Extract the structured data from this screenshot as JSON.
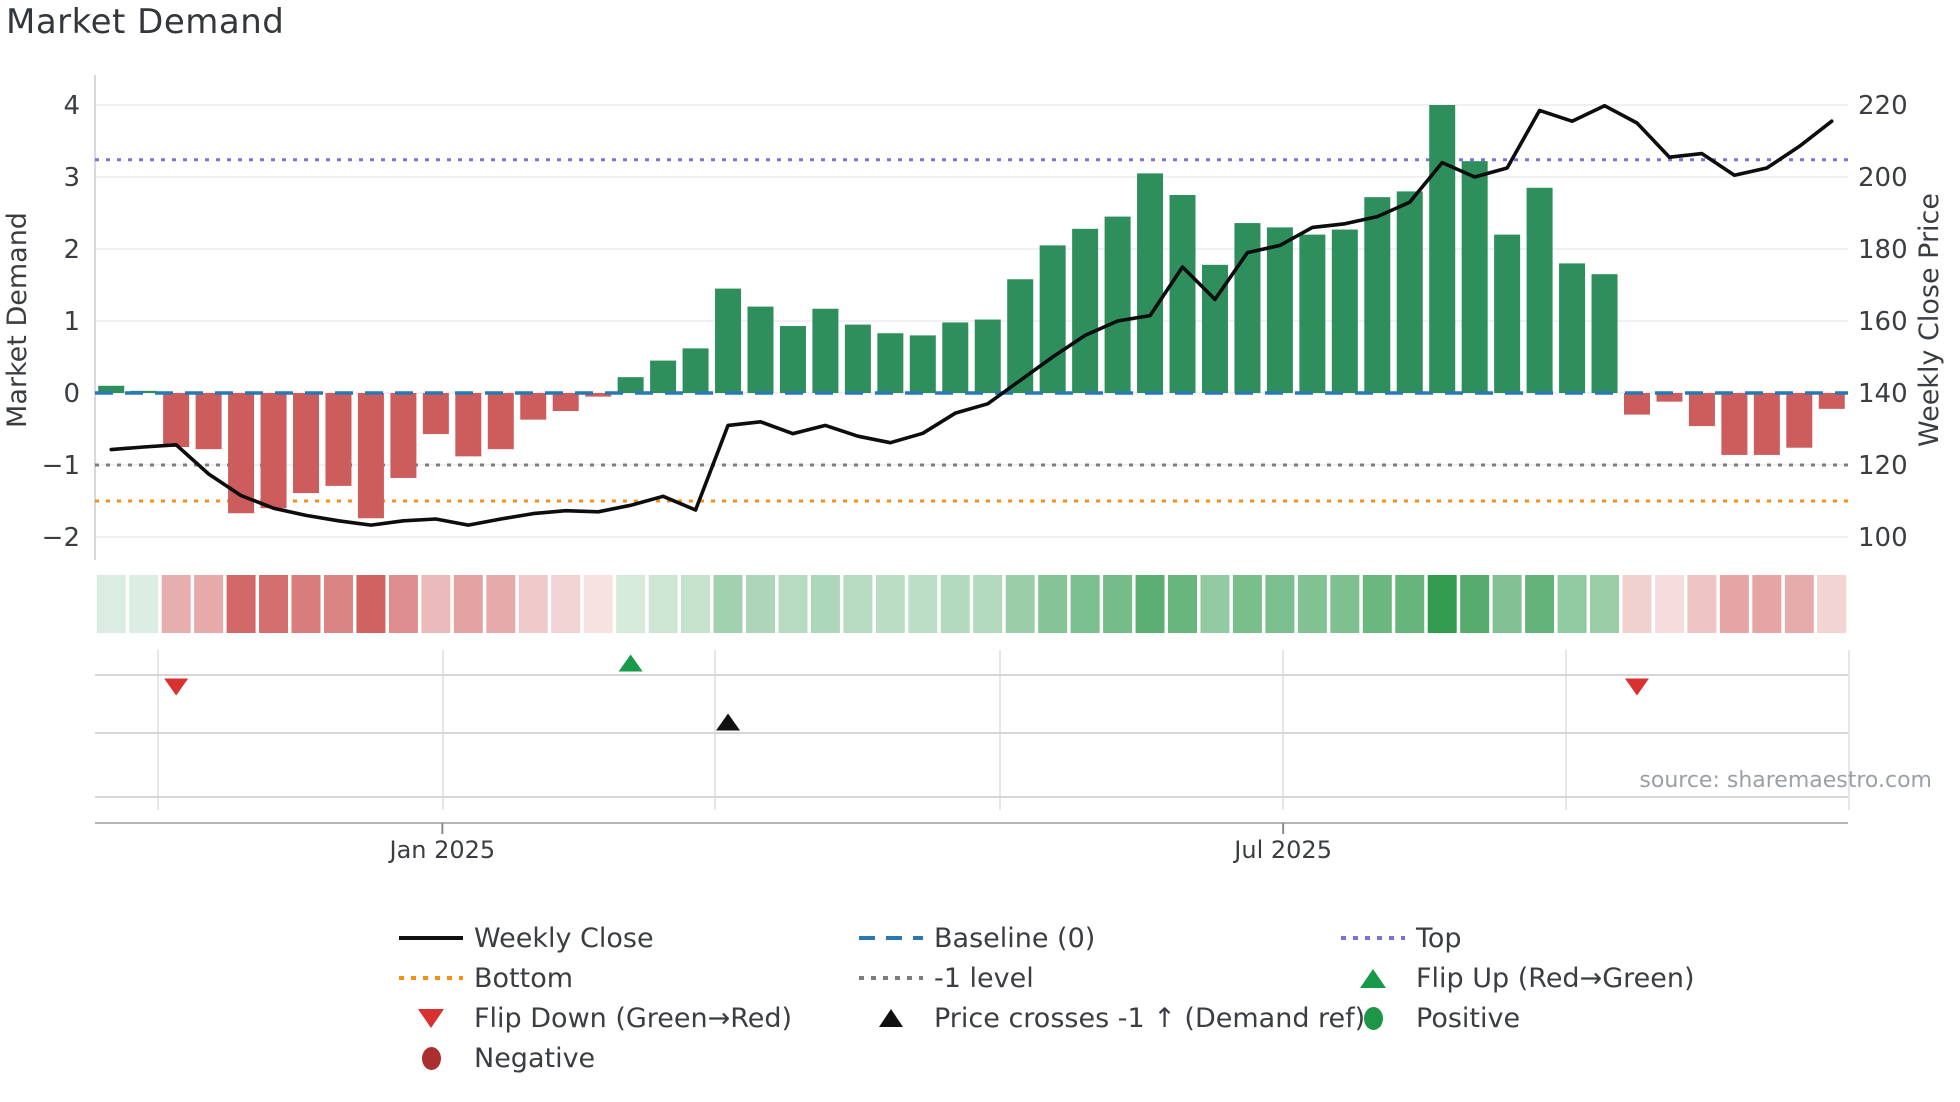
{
  "title": "Market Demand",
  "source_text": "source: sharemaestro.com",
  "colors": {
    "bar_positive": "#2e8f5d",
    "bar_negative": "#cd5c5c",
    "price_line": "#0d0d0d",
    "baseline": "#2878b4",
    "top_line": "#7b71d8",
    "bottom_line": "#f59016",
    "minus_one_line": "#7d7d7d",
    "flip_up_marker": "#189a4a",
    "flip_down_marker": "#d93030",
    "price_cross_marker": "#111111",
    "grid": "#ebebf0",
    "heat_green": "40,150,70",
    "heat_red": "205,85,85",
    "tick_text": "#3a3e42",
    "panel_line": "#d6d6d6",
    "axis_line": "#b5b5b5"
  },
  "chart_data": {
    "type": "combo-bar-line-heatmap",
    "weeks": 54,
    "title": "Market Demand",
    "x_axis": {
      "tick_labels": [
        "Jan 2025",
        "Jul 2025"
      ],
      "tick_week_positions": [
        10.2,
        36.1
      ]
    },
    "demand_axis": {
      "label": "Market Demand",
      "ticks": [
        4,
        3,
        2,
        1,
        0,
        -1,
        -2
      ],
      "tick_labels": [
        "4",
        "3",
        "2",
        "1",
        "0",
        "−1",
        "−2"
      ],
      "visible_range": [
        -2.32,
        4.42
      ]
    },
    "price_axis": {
      "label": "Weekly Close Price",
      "ticks": [
        220,
        200,
        180,
        160,
        140,
        120,
        100
      ],
      "tick_labels": [
        "220",
        "200",
        "180",
        "160",
        "140",
        "120",
        "100"
      ],
      "price_per_demand_unit": 20,
      "price_at_zero_demand": 140
    },
    "series": [
      {
        "name": "Market Demand",
        "type": "bar",
        "axis": "demand",
        "values": [
          0.1,
          0.03,
          -0.75,
          -0.78,
          -1.67,
          -1.6,
          -1.39,
          -1.29,
          -1.74,
          -1.18,
          -0.57,
          -0.88,
          -0.78,
          -0.37,
          -0.25,
          -0.05,
          0.22,
          0.45,
          0.62,
          1.45,
          1.2,
          0.93,
          1.17,
          0.95,
          0.83,
          0.8,
          0.98,
          1.02,
          1.58,
          2.05,
          2.28,
          2.45,
          3.05,
          2.75,
          1.78,
          2.36,
          2.3,
          2.2,
          2.27,
          2.72,
          2.8,
          4.0,
          3.22,
          2.2,
          2.85,
          1.8,
          1.65,
          -0.3,
          -0.12,
          -0.46,
          -0.86,
          -0.86,
          -0.76,
          -0.22
        ]
      },
      {
        "name": "Weekly Close",
        "type": "line",
        "axis": "price",
        "values": [
          124.3,
          125.0,
          125.6,
          117.5,
          111.5,
          108.0,
          106.0,
          104.5,
          103.3,
          104.5,
          105.0,
          103.3,
          105.0,
          106.5,
          107.3,
          107.0,
          108.8,
          111.3,
          107.5,
          131.0,
          132.0,
          128.7,
          131.0,
          128.0,
          126.2,
          128.8,
          134.4,
          137.0,
          143.5,
          150.0,
          156.0,
          160.0,
          161.5,
          175.0,
          166.0,
          179.0,
          181.0,
          186.0,
          187.0,
          189.0,
          193.0,
          204.0,
          200.0,
          202.5,
          218.5,
          215.5,
          219.8,
          215.0,
          205.5,
          206.5,
          200.5,
          202.5,
          208.5,
          215.5
        ]
      }
    ],
    "reference_lines": [
      {
        "name": "Baseline (0)",
        "value": 0,
        "style": "dashed"
      },
      {
        "name": "Top",
        "value": 3.24,
        "style": "dotted"
      },
      {
        "name": "-1 level",
        "value": -1,
        "style": "dotted"
      },
      {
        "name": "Bottom",
        "value": -1.5,
        "style": "dotted"
      }
    ],
    "heatmap_strip": {
      "source_series": "Market Demand",
      "green_norm_max": 4.0,
      "red_norm_max": 1.8
    },
    "markers": {
      "flip_up_weeks": [
        16
      ],
      "flip_down_weeks": [
        2,
        47
      ],
      "price_cross_weeks": [
        19
      ]
    },
    "grid": "horizontal-on",
    "legend_position": "bottom"
  },
  "legend": {
    "columns": [
      {
        "items": [
          {
            "label": "Weekly Close",
            "swatch": "line-black"
          },
          {
            "label": "Bottom",
            "swatch": "dotted-orange"
          },
          {
            "label": "Flip Down (Green→Red)",
            "swatch": "triangle-down-red"
          },
          {
            "label": "Negative",
            "swatch": "circle-darkred"
          }
        ]
      },
      {
        "items": [
          {
            "label": "Baseline (0)",
            "swatch": "dashed-blue"
          },
          {
            "label": "-1 level",
            "swatch": "dotted-gray"
          },
          {
            "label": "Price crosses -1 ↑ (Demand ref)",
            "swatch": "triangle-up-black"
          }
        ]
      },
      {
        "items": [
          {
            "label": "Top",
            "swatch": "dotted-purple"
          },
          {
            "label": "Flip Up (Red→Green)",
            "swatch": "triangle-up-green"
          },
          {
            "label": "Positive",
            "swatch": "circle-green"
          }
        ]
      }
    ]
  }
}
